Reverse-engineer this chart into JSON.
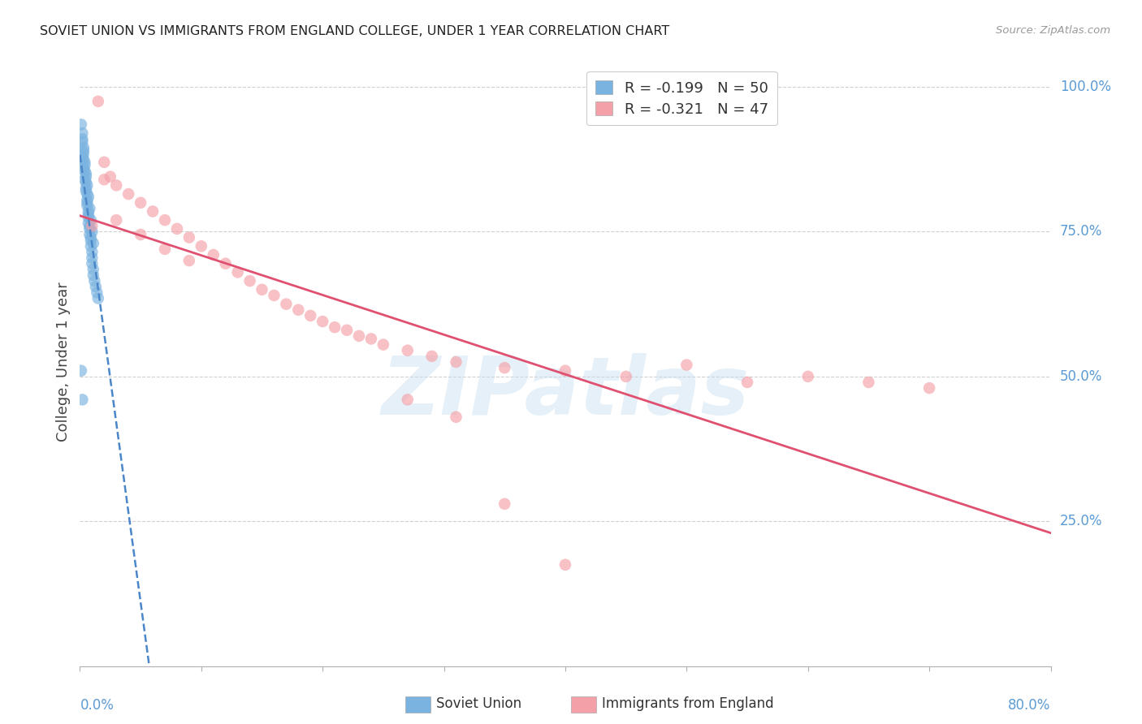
{
  "title": "SOVIET UNION VS IMMIGRANTS FROM ENGLAND COLLEGE, UNDER 1 YEAR CORRELATION CHART",
  "source": "Source: ZipAtlas.com",
  "ylabel": "College, Under 1 year",
  "right_yticks": [
    "100.0%",
    "75.0%",
    "50.0%",
    "25.0%"
  ],
  "right_ytick_vals": [
    1.0,
    0.75,
    0.5,
    0.25
  ],
  "soviet_color": "#7ab3e0",
  "england_color": "#f4a0a8",
  "soviet_line_color": "#4a86c8",
  "england_line_color": "#e05070",
  "watermark": "ZIPatlas",
  "xlim": [
    0.0,
    0.8
  ],
  "ylim": [
    0.0,
    1.05
  ],
  "soviet_x": [
    0.001,
    0.002,
    0.002,
    0.003,
    0.003,
    0.004,
    0.005,
    0.005,
    0.006,
    0.006,
    0.006,
    0.007,
    0.007,
    0.008,
    0.008,
    0.009,
    0.009,
    0.01,
    0.01,
    0.011,
    0.011,
    0.012,
    0.012,
    0.013,
    0.013,
    0.014,
    0.015,
    0.016,
    0.017,
    0.018,
    0.002,
    0.003,
    0.004,
    0.004,
    0.005,
    0.005,
    0.006,
    0.007,
    0.007,
    0.008,
    0.009,
    0.01,
    0.011,
    0.012,
    0.013,
    0.015,
    0.016,
    0.018,
    0.001,
    0.003
  ],
  "soviet_y": [
    0.93,
    0.92,
    0.9,
    0.89,
    0.88,
    0.87,
    0.86,
    0.85,
    0.84,
    0.83,
    0.82,
    0.81,
    0.8,
    0.79,
    0.78,
    0.77,
    0.76,
    0.75,
    0.74,
    0.73,
    0.72,
    0.71,
    0.7,
    0.69,
    0.68,
    0.67,
    0.66,
    0.65,
    0.64,
    0.63,
    0.91,
    0.86,
    0.84,
    0.83,
    0.82,
    0.8,
    0.79,
    0.77,
    0.76,
    0.75,
    0.72,
    0.7,
    0.68,
    0.67,
    0.65,
    0.63,
    0.61,
    0.59,
    0.5,
    0.47
  ],
  "england_x": [
    0.015,
    0.02,
    0.025,
    0.03,
    0.04,
    0.045,
    0.05,
    0.06,
    0.065,
    0.07,
    0.08,
    0.09,
    0.1,
    0.11,
    0.12,
    0.13,
    0.135,
    0.14,
    0.15,
    0.16,
    0.17,
    0.18,
    0.19,
    0.2,
    0.21,
    0.22,
    0.23,
    0.24,
    0.25,
    0.27,
    0.29,
    0.31,
    0.35,
    0.4,
    0.45,
    0.5,
    0.6,
    0.7,
    0.01,
    0.02,
    0.03,
    0.05,
    0.07,
    0.09,
    0.11,
    0.14,
    0.18
  ],
  "england_y": [
    0.975,
    0.87,
    0.84,
    0.82,
    0.8,
    0.79,
    0.78,
    0.77,
    0.76,
    0.75,
    0.74,
    0.73,
    0.72,
    0.71,
    0.7,
    0.69,
    0.68,
    0.67,
    0.66,
    0.65,
    0.64,
    0.63,
    0.62,
    0.61,
    0.6,
    0.6,
    0.59,
    0.58,
    0.57,
    0.55,
    0.53,
    0.52,
    0.51,
    0.51,
    0.5,
    0.52,
    0.5,
    0.44,
    0.76,
    0.84,
    0.76,
    0.74,
    0.71,
    0.7,
    0.68,
    0.67,
    0.64
  ]
}
